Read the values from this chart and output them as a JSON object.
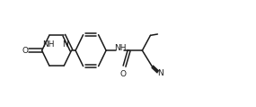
{
  "background": "#ffffff",
  "line_color": "#1a1a1a",
  "line_width": 1.1,
  "font_size": 6.5,
  "figsize": [
    2.85,
    1.19
  ],
  "dpi": 100,
  "xlim": [
    0,
    10
  ],
  "ylim": [
    0,
    3.5
  ]
}
